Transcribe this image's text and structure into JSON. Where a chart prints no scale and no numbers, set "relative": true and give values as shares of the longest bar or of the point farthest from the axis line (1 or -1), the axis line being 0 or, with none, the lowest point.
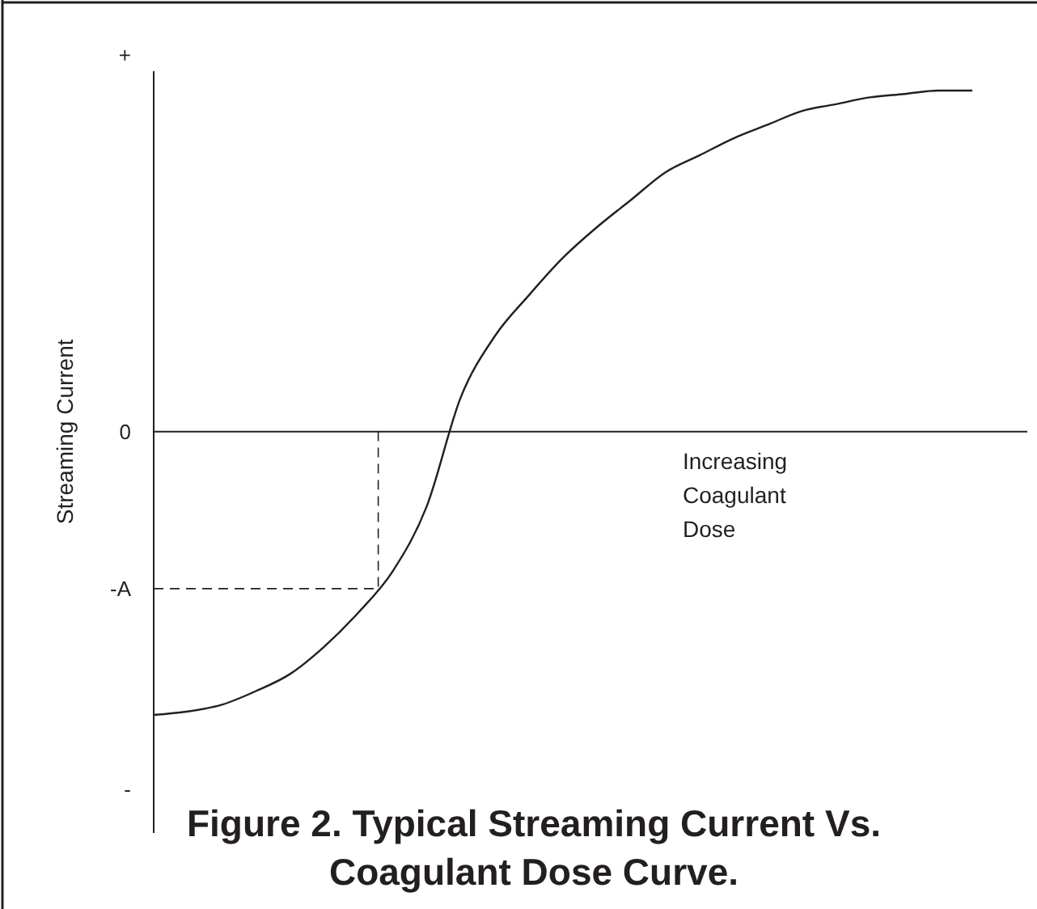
{
  "chart_data": {
    "type": "line",
    "relative": true,
    "title": "Figure 2. Typical Streaming Current Vs.\nCoagulant Dose Curve.",
    "xlabel": "Increasing\nCoagulant\nDose",
    "ylabel": "Streaming Current",
    "categories": [
      null,
      null,
      null,
      null,
      null,
      null,
      null,
      null,
      null,
      null,
      null,
      null,
      null,
      null,
      null,
      null,
      null,
      null,
      null,
      null,
      null,
      null,
      null,
      null,
      null
    ],
    "series": [
      {
        "color": "#231f20",
        "values": [
          -0.83,
          -0.82,
          -0.8,
          -0.76,
          -0.71,
          -0.63,
          -0.53,
          -0.41,
          -0.22,
          0.1,
          0.28,
          0.4,
          0.51,
          0.6,
          0.68,
          0.76,
          0.81,
          0.86,
          0.9,
          0.94,
          0.96,
          0.98,
          0.99,
          1.0,
          1.0
        ]
      }
    ],
    "annotations": [
      "+",
      "-"
    ],
    "ref_lines": [
      {
        "axis": "y",
        "value": 0,
        "label": "0",
        "line_style": "solid"
      },
      {
        "axis": "y",
        "value": -0.46,
        "label": "-A",
        "line_style": "dashed"
      }
    ],
    "marker": "none",
    "line_style": "solid",
    "grid": false
  }
}
